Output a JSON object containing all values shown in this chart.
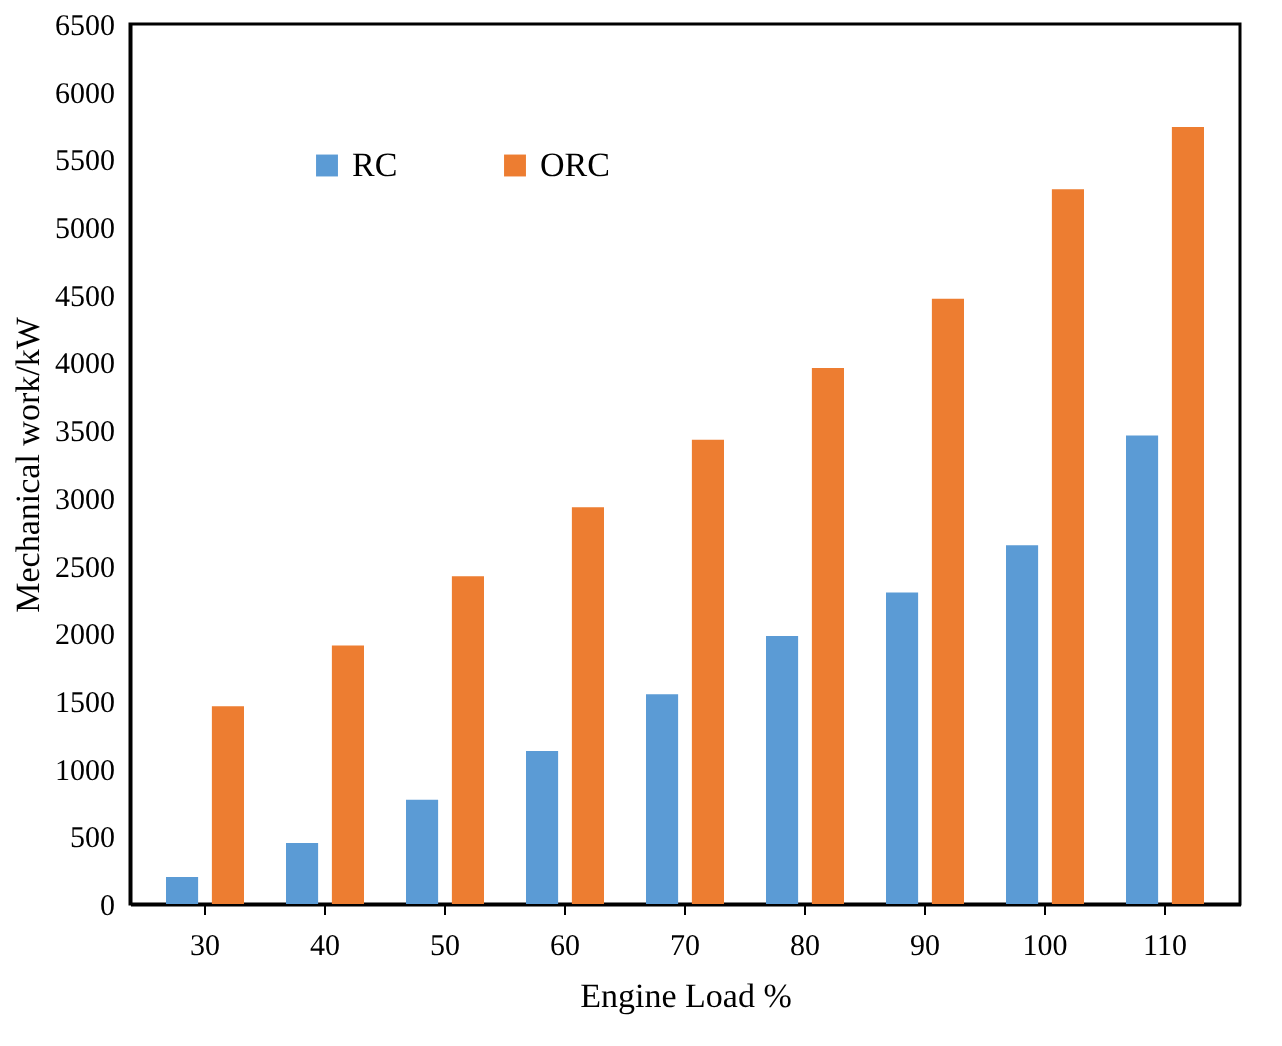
{
  "chart_data": {
    "type": "bar",
    "xlabel": "Engine Load %",
    "ylabel": "Mechanical work/kW",
    "categories": [
      "30",
      "40",
      "50",
      "60",
      "70",
      "80",
      "90",
      "100",
      "110"
    ],
    "series": [
      {
        "name": "RC",
        "color": "#5b9bd5",
        "values": [
          200,
          450,
          770,
          1130,
          1550,
          1980,
          2300,
          2650,
          3460
        ]
      },
      {
        "name": "ORC",
        "color": "#ed7d31",
        "values": [
          1460,
          1910,
          2420,
          2930,
          3430,
          3960,
          4470,
          5280,
          5740
        ]
      }
    ],
    "ylim": [
      0,
      6500
    ],
    "yticks": [
      0,
      500,
      1000,
      1500,
      2000,
      2500,
      3000,
      3500,
      4000,
      4500,
      5000,
      5500,
      6000,
      6500
    ],
    "grid": false,
    "legend": "top left"
  }
}
